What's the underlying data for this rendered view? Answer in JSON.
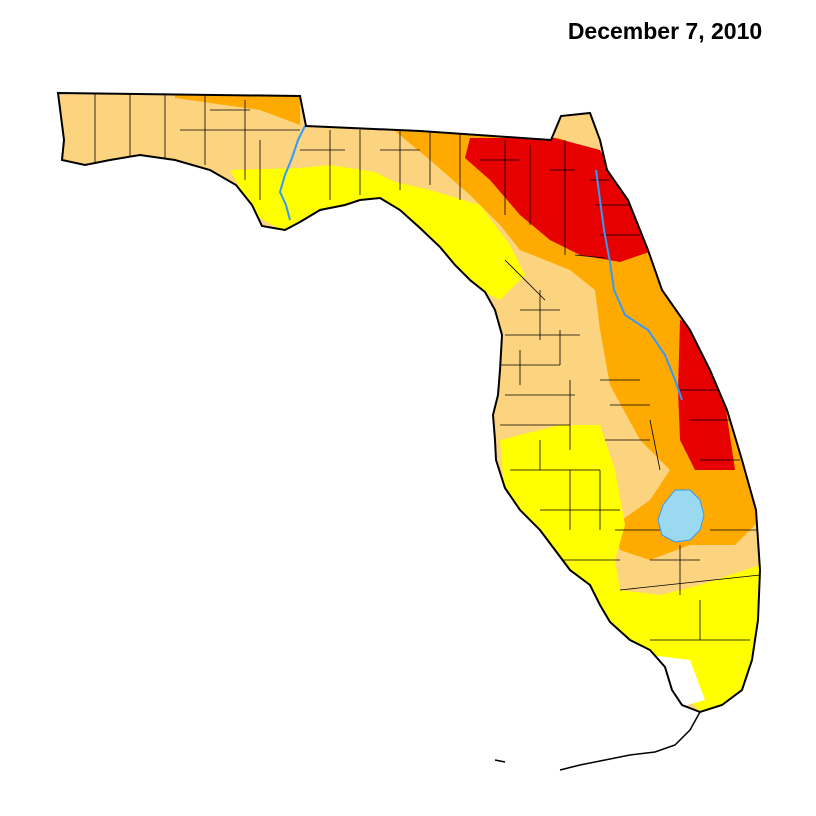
{
  "map": {
    "date_label": "December 7, 2010",
    "colors": {
      "d0_abnormally_dry": "#ffff00",
      "d1_moderate": "#fcd37f",
      "d2_severe": "#ffaa00",
      "d3_extreme": "#e60000",
      "none": "#ffffff",
      "water": "#9ad9f0",
      "river": "#3399ff",
      "outline": "#000000"
    }
  }
}
